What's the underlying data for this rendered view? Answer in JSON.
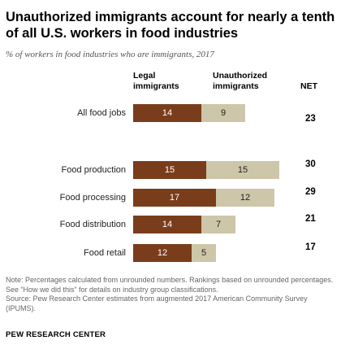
{
  "title": "Unauthorized immigrants account for nearly a tenth of all U.S. workers in food industries",
  "subtitle": "% of workers in food industries who are immigrants, 2017",
  "headers": {
    "legal": "Legal immigrants",
    "unauthorized": "Unauthorized immigrants",
    "net": "NET"
  },
  "colors": {
    "legal": "#7a3d1b",
    "unauthorized": "#cdc6a9"
  },
  "chart_data": {
    "type": "bar",
    "orientation": "horizontal",
    "stacked": true,
    "categories": [
      "All food jobs",
      "Food production",
      "Food processing",
      "Food distribution",
      "Food retail"
    ],
    "series": [
      {
        "name": "Legal immigrants",
        "values": [
          14,
          15,
          17,
          14,
          12
        ]
      },
      {
        "name": "Unauthorized immigrants",
        "values": [
          9,
          15,
          12,
          7,
          5
        ]
      }
    ],
    "net": [
      23,
      30,
      29,
      21,
      17
    ],
    "title": "Unauthorized immigrants account for nearly a tenth of all U.S. workers in food industries",
    "subtitle": "% of workers in food industries who are immigrants, 2017",
    "grid": false,
    "legend": "top"
  },
  "note": "Note: Percentages calculated from unrounded numbers. Rankings based on unrounded percentages. See “How we did this” for details on industry group classifications.",
  "source": "Source: Pew Research Center estimates from augmented 2017 American Community Survey (IPUMS).",
  "footer": "PEW RESEARCH CENTER"
}
